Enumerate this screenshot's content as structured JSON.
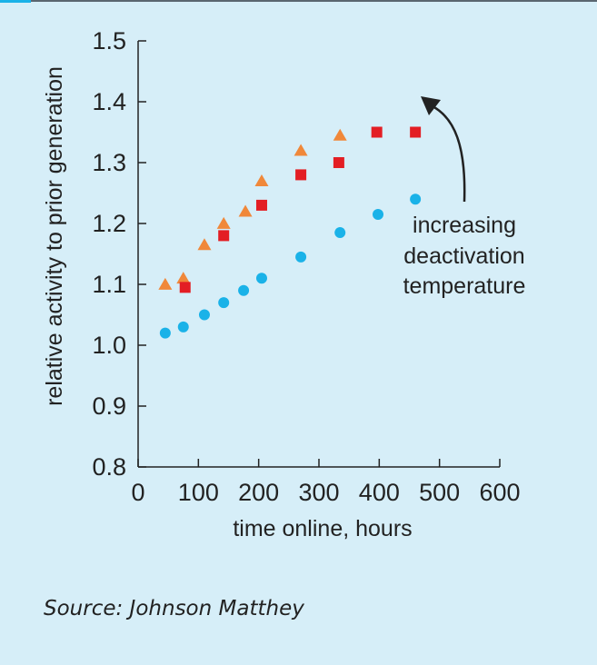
{
  "chart_data": {
    "type": "scatter",
    "title": "",
    "xlabel": "time online, hours",
    "ylabel": "relative activity to prior generation",
    "xlim": [
      0,
      600
    ],
    "ylim": [
      0.8,
      1.5
    ],
    "x_ticks": [
      "0",
      "100",
      "200",
      "300",
      "400",
      "500",
      "600"
    ],
    "y_ticks": [
      "0.8",
      "0.9",
      "1.0",
      "1.1",
      "1.2",
      "1.3",
      "1.4",
      "1.5"
    ],
    "grid": false,
    "legend": "none",
    "series": [
      {
        "marker": "triangle",
        "color": "#f0883a",
        "points": [
          [
            45,
            1.1
          ],
          [
            75,
            1.11
          ],
          [
            110,
            1.165
          ],
          [
            142,
            1.2
          ],
          [
            178,
            1.22
          ],
          [
            205,
            1.27
          ],
          [
            270,
            1.32
          ],
          [
            335,
            1.345
          ]
        ]
      },
      {
        "marker": "square",
        "color": "#e31e24",
        "points": [
          [
            78,
            1.095
          ],
          [
            142,
            1.18
          ],
          [
            205,
            1.23
          ],
          [
            270,
            1.28
          ],
          [
            333,
            1.3
          ],
          [
            396,
            1.35
          ],
          [
            460,
            1.35
          ]
        ]
      },
      {
        "marker": "circle",
        "color": "#1ab2e8",
        "points": [
          [
            45,
            1.02
          ],
          [
            75,
            1.03
          ],
          [
            110,
            1.05
          ],
          [
            142,
            1.07
          ],
          [
            175,
            1.09
          ],
          [
            205,
            1.11
          ],
          [
            270,
            1.145
          ],
          [
            335,
            1.185
          ],
          [
            398,
            1.215
          ],
          [
            460,
            1.24
          ]
        ]
      }
    ],
    "annotation": {
      "lines": [
        "increasing",
        "deactivation",
        "temperature"
      ]
    }
  },
  "source_text": "Source: Johnson Matthey",
  "colors": {
    "background": "#d6eef8",
    "axis": "#222222",
    "accent": "#1ab2e8"
  }
}
